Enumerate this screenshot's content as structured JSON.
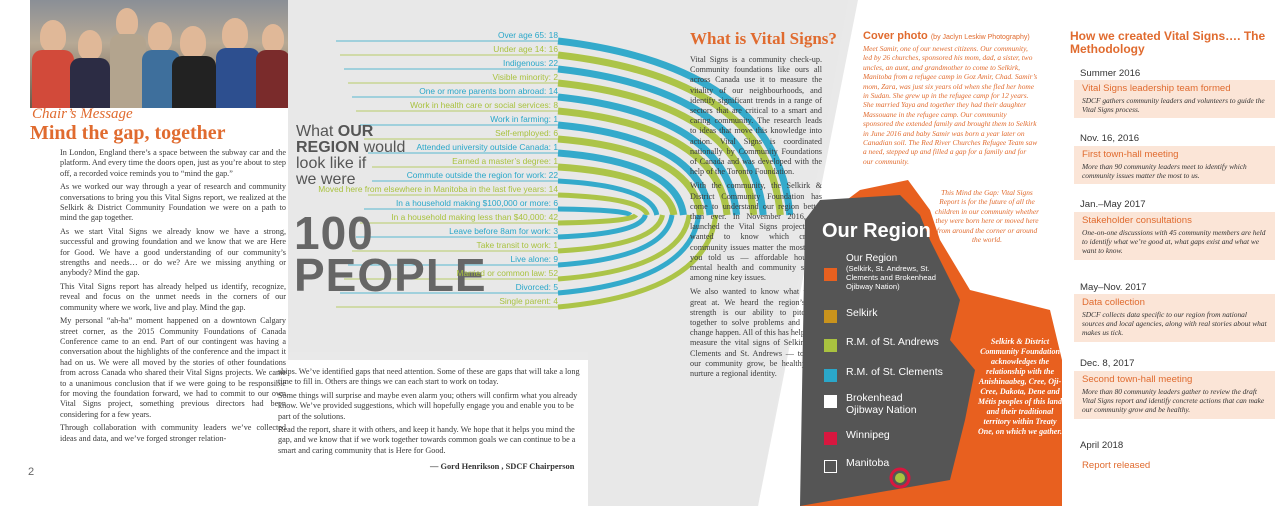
{
  "page_number": "2",
  "chair": {
    "kicker": "Chair’s Message",
    "title": "Mind the gap, together",
    "paragraphs": [
      "In London, England there’s a space between the subway car and the platform. And every time the doors open, just as you’re about to step off, a recorded voice reminds you to “mind the gap.”",
      "As we worked our way through a year of research and community conversations to bring you this Vital Signs report, we realized at the Selkirk & District Community Foundation we were on a path to mind the gap together.",
      "As we start Vital Signs we already know we have a strong, successful and growing foundation and we know that we are Here for Good. We have a good understanding of our community’s strengths and needs… or do we? Are we missing anything or anybody? Mind the gap.",
      "This Vital Signs report has already helped us identify, recognize, reveal and focus on the unmet needs in the corners of our community where we work, live and play. Mind the gap.",
      "My personal “ah-ha” moment happened on a downtown Calgary street corner, as the 2015 Community Foundations of Canada Conference came to an end. Part of our contingent was having a conversation about the highlights of the conference and the impact it had on us. We were all moved by the stories of other foundations from across Canada who shared their Vital Signs projects. We came to a unanimous conclusion that if we were going to be responsible for moving the foundation forward, we had to commit to our own Vital Signs project, something previous directors had been considering for a few years.",
      "Through collaboration with community leaders we’ve collected ideas and data, and we’ve forged stronger relation-"
    ],
    "paragraphs2": [
      "ships. We’ve identified gaps that need attention. Some of these are gaps that will take a long time to fill in. Others are things we can each start to work on today.",
      "Some things will surprise and maybe even alarm you; others will confirm what you already know. We’ve provided suggestions, which will hopefully engage you and enable you to be part of the solutions.",
      "Read the report, share it with others, and keep it handy. We hope that it helps you mind the gap, and we know that if we work together towards common goals we can continue to be a smart and caring community that is Here for Good."
    ],
    "signature": "— Gord Henrikson , SDCF Chairperson"
  },
  "infographic": {
    "question_line1": "What ",
    "question_bold1": "OUR",
    "question_line2_bold": "REGION",
    "question_line2": " would",
    "question_line3": "look like if",
    "question_line4": "we were",
    "hundred": "100",
    "people": "PEOPLE",
    "stats": [
      {
        "label": "Over age 65: 18",
        "color": "#2aa7c9"
      },
      {
        "label": "Under age 14: 16",
        "color": "#a9c23f"
      },
      {
        "label": "Indigenous: 22",
        "color": "#2aa7c9"
      },
      {
        "label": "Visible minority: 2",
        "color": "#a9c23f"
      },
      {
        "label": "One or more parents born abroad: 14",
        "color": "#2aa7c9"
      },
      {
        "label": "Work in health care or social services: 8",
        "color": "#a9c23f"
      },
      {
        "label": "Work in farming: 1",
        "color": "#2aa7c9"
      },
      {
        "label": "Self-employed: 6",
        "color": "#a9c23f"
      },
      {
        "label": "Attended university outside Canada: 1",
        "color": "#2aa7c9"
      },
      {
        "label": "Earned a master’s degree: 1",
        "color": "#a9c23f"
      },
      {
        "label": "Commute outside the region for work: 22",
        "color": "#2aa7c9"
      },
      {
        "label": "Moved here from elsewhere in Manitoba in the last five years: 14",
        "color": "#a9c23f"
      },
      {
        "label": "In a household making $100,000 or more: 6",
        "color": "#2aa7c9"
      },
      {
        "label": "In a household making less than $40,000: 42",
        "color": "#a9c23f"
      },
      {
        "label": "Leave before 8am for work: 3",
        "color": "#2aa7c9"
      },
      {
        "label": "Take transit to work: 1",
        "color": "#a9c23f"
      },
      {
        "label": "Live alone: 9",
        "color": "#2aa7c9"
      },
      {
        "label": "Married or common law: 52",
        "color": "#a9c23f"
      },
      {
        "label": "Divorced: 5",
        "color": "#2aa7c9"
      },
      {
        "label": "Single parent: 4",
        "color": "#a9c23f"
      }
    ]
  },
  "vital_signs": {
    "title": "What is Vital Signs?",
    "paragraphs": [
      "Vital Signs is a community check-up. Community foundations like ours all across Canada use it to measure the vitality of our neighbourhoods, and identify significant trends in a range of sectors that are critical to a smart and caring community. The research leads to ideas that move this knowledge into action. Vital Signs is coordinated nationally by Community Foundations of Canada and was developed with the help of the Toronto Foundation.",
      "With the community, the Selkirk & District Community Foundation has come to understand our region better than ever. In November 2016, we launched the Vital Signs project. We wanted to know which critical community issues matter the most, and you told us — affordable housing, mental health and community safety, among nine key issues.",
      "We also wanted to know what we’re great at. We heard the region’s key strength is our ability to pitch in together to solve problems and make change happen. All of this has helped us measure the vital signs of Selkirk, St. Clements and St. Andrews — to help our community grow, be healthy and nurture a regional identity."
    ]
  },
  "cover_photo": {
    "title": "Cover photo",
    "credit": "(by Jaclyn Leskiw Photography)",
    "text": "Meet Samir, one of our newest citizens. Our community, led by 26 churches, sponsored his mom, dad, a sister, two uncles, an aunt, and grandmother to come to Selkirk, Manitoba from a refugee camp in Goz Amir, Chad. Samir’s mom, Zara, was just six years old when she fled her home in Sudan. She grew up in the refugee camp for 12 years. She married Yaya and together they had their daughter Massouane in the refugee camp. Our community sponsored the extended family and brought them to Selkirk in June 2016 and baby Samir was born a year later on Canadian soil. The Red River Churches Refugee Team saw a need, stepped up and filled a gap for a family and for our community.",
    "text2": "This Mind the Gap: Vital Signs Report is for the future of all the children in our community whether they were born here or moved here from around the corner or around the world."
  },
  "map": {
    "title": "Our Region",
    "legend": [
      {
        "label": "Our Region",
        "sub": "(Selkirk, St. Andrews, St. Clements and Brokenhead Ojibway Nation)",
        "color": "#e8601f"
      },
      {
        "label": "Selkirk",
        "sub": "",
        "color": "#c9931c"
      },
      {
        "label": "R.M. of St. Andrews",
        "sub": "",
        "color": "#a9c23f"
      },
      {
        "label": "R.M. of St. Clements",
        "sub": "",
        "color": "#2aa7c9"
      },
      {
        "label": "Brokenhead Ojibway Nation",
        "sub": "",
        "color": "#ffffff"
      },
      {
        "label": "Winnipeg",
        "sub": "",
        "color": "#d8173f"
      },
      {
        "label": "Manitoba",
        "sub": "",
        "color": "outline"
      }
    ],
    "treaty_text": "Selkirk & District Community Foundation acknowledges the relationship with the Anishinaabeg, Cree, Oji-Cree, Dakota, Dene and Métis peoples of this land and their traditional territory within Treaty One, on which we gather."
  },
  "methodology": {
    "title": "How we created Vital Signs…. The Methodology",
    "steps": [
      {
        "date": "Summer 2016",
        "heading": "Vital Signs leadership team formed",
        "desc": "SDCF gathers community leaders and volunteers to guide the Vital Signs process."
      },
      {
        "date": "Nov. 16, 2016",
        "heading": "First town-hall meeting",
        "desc": "More than 90 community leaders meet to identify which community issues matter the most to us."
      },
      {
        "date": "Jan.–May 2017",
        "heading": "Stakeholder consultations",
        "desc": "One-on-one discussions with 45 community members are held to identify what we’re good at, what gaps exist and what we want to know."
      },
      {
        "date": "May–Nov. 2017",
        "heading": "Data collection",
        "desc": "SDCF collects data specific to our region from national sources and local agencies, along with real stories about what makes us tick."
      },
      {
        "date": "Dec. 8, 2017",
        "heading": "Second town-hall meeting",
        "desc": "More than 80 community leaders gather to review the draft Vital Signs report and identify concrete actions that can make our community grow and be healthy."
      },
      {
        "date": "April 2018",
        "heading": "Report released",
        "desc": ""
      }
    ]
  }
}
